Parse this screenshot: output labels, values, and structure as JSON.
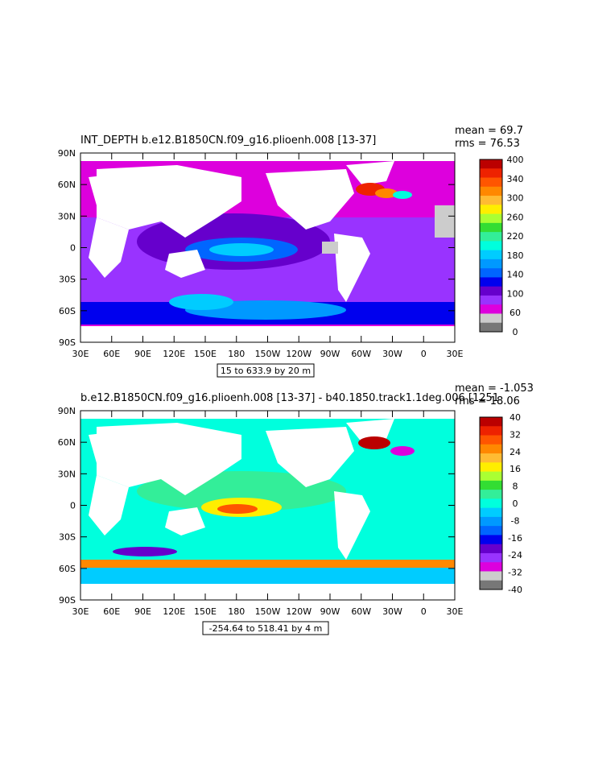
{
  "panels": [
    {
      "title": "INT_DEPTH b.e12.B1850CN.f09_g16.plioenh.008 [13-37]",
      "stats": [
        "mean = 69.7",
        "rms = 76.53"
      ],
      "info_box": "15 to 633.9 by 20 m",
      "lat_labels": [
        "90N",
        "60N",
        "30N",
        "0",
        "30S",
        "60S",
        "90S"
      ],
      "lon_labels": [
        "30E",
        "60E",
        "90E",
        "120E",
        "150E",
        "180",
        "150W",
        "120W",
        "90W",
        "60W",
        "30W",
        "0",
        "30E"
      ],
      "colorbar": {
        "labels": [
          "400",
          "340",
          "300",
          "260",
          "220",
          "180",
          "140",
          "100",
          "60",
          "0"
        ],
        "colors": [
          "#bb0000",
          "#ee2200",
          "#ff5500",
          "#ff8800",
          "#ffbb33",
          "#ffee00",
          "#aaff33",
          "#33dd33",
          "#33ee99",
          "#00ffdd",
          "#00ccff",
          "#0099ff",
          "#0066ff",
          "#0000ee",
          "#6600cc",
          "#9933ff",
          "#dd00dd",
          "#cccccc",
          "#777777"
        ]
      }
    },
    {
      "title": "b.e12.B1850CN.f09_g16.plioenh.008 [13-37] - b40.1850.track1.1deg.006 [1251",
      "stats": [
        "mean = -1.053",
        "rms = 18.06"
      ],
      "info_box": "-254.64 to 518.41 by 4 m",
      "lat_labels": [
        "90N",
        "60N",
        "30N",
        "0",
        "30S",
        "60S",
        "90S"
      ],
      "lon_labels": [
        "30E",
        "60E",
        "90E",
        "120E",
        "150E",
        "180",
        "150W",
        "120W",
        "90W",
        "60W",
        "30W",
        "0",
        "30E"
      ],
      "colorbar": {
        "labels": [
          "40",
          "32",
          "24",
          "16",
          "8",
          "0",
          "-8",
          "-16",
          "-24",
          "-32",
          "-40"
        ],
        "colors": [
          "#bb0000",
          "#ee2200",
          "#ff5500",
          "#ff8800",
          "#ffbb33",
          "#ffee00",
          "#aaff33",
          "#33dd33",
          "#33ee99",
          "#00ffdd",
          "#00ccff",
          "#0099ff",
          "#0066ff",
          "#0000ee",
          "#6600cc",
          "#9933ff",
          "#dd00dd",
          "#cccccc",
          "#777777"
        ]
      }
    }
  ]
}
